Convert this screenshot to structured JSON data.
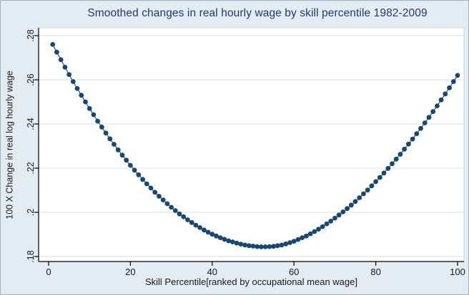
{
  "figure": {
    "background_color": "#e3ecf3",
    "plot_background": "#ffffff",
    "plot_border_color": "#c9d6e2",
    "gridline_color": "#dce8f1",
    "axis_color": "#000000",
    "tick_label_color": "#1a1a1a",
    "title_color": "#1e3a6e",
    "marker_color": "#1a476f",
    "line_color": "#1a476f"
  },
  "chart_data": {
    "type": "scatter",
    "title": "Smoothed changes in real hourly wage by skill percentile 1982-2009",
    "xlabel": "Skill Percentile[ranked by occupational mean wage]",
    "ylabel": "100 X Change in real log hourly wage",
    "legend": "none",
    "grid": "horizontal",
    "xlim": [
      -2.5,
      101.5
    ],
    "ylim": [
      0.178,
      0.284
    ],
    "x_ticks": [
      0,
      20,
      40,
      60,
      80,
      100
    ],
    "x_tick_labels": [
      "0",
      "20",
      "40",
      "60",
      "80",
      "100"
    ],
    "y_ticks": [
      0.18,
      0.2,
      0.22,
      0.24,
      0.26,
      0.28
    ],
    "y_tick_labels": [
      ".18",
      ".2",
      ".22",
      ".24",
      ".26",
      ".28"
    ],
    "series_name": "Smoothed change in real log hourly wage",
    "x": [
      1,
      2,
      3,
      4,
      5,
      6,
      7,
      8,
      9,
      10,
      11,
      12,
      13,
      14,
      15,
      16,
      17,
      18,
      19,
      20,
      21,
      22,
      23,
      24,
      25,
      26,
      27,
      28,
      29,
      30,
      31,
      32,
      33,
      34,
      35,
      36,
      37,
      38,
      39,
      40,
      41,
      42,
      43,
      44,
      45,
      46,
      47,
      48,
      49,
      50,
      51,
      52,
      53,
      54,
      55,
      56,
      57,
      58,
      59,
      60,
      61,
      62,
      63,
      64,
      65,
      66,
      67,
      68,
      69,
      70,
      71,
      72,
      73,
      74,
      75,
      76,
      77,
      78,
      79,
      80,
      81,
      82,
      83,
      84,
      85,
      86,
      87,
      88,
      89,
      90,
      91,
      92,
      93,
      94,
      95,
      96,
      97,
      98,
      99,
      100
    ],
    "y": [
      0.276,
      0.2725,
      0.2691,
      0.2657,
      0.2624,
      0.2592,
      0.2561,
      0.253,
      0.25,
      0.247,
      0.2442,
      0.2413,
      0.2386,
      0.2359,
      0.2333,
      0.2308,
      0.2283,
      0.2259,
      0.2236,
      0.2213,
      0.2191,
      0.217,
      0.2149,
      0.2129,
      0.211,
      0.2091,
      0.2073,
      0.2056,
      0.2039,
      0.2023,
      0.2008,
      0.1993,
      0.198,
      0.1966,
      0.1954,
      0.1942,
      0.1931,
      0.192,
      0.191,
      0.1901,
      0.1893,
      0.1885,
      0.1878,
      0.1871,
      0.1866,
      0.1861,
      0.1856,
      0.1852,
      0.1849,
      0.1847,
      0.1845,
      0.1844,
      0.1844,
      0.1845,
      0.1846,
      0.1849,
      0.1852,
      0.1857,
      0.1863,
      0.1869,
      0.1877,
      0.1885,
      0.1893,
      0.1903,
      0.1913,
      0.1924,
      0.1935,
      0.1948,
      0.196,
      0.1974,
      0.1988,
      0.2002,
      0.2017,
      0.2033,
      0.2049,
      0.2066,
      0.2084,
      0.2101,
      0.212,
      0.2139,
      0.2158,
      0.2178,
      0.2199,
      0.222,
      0.2241,
      0.2263,
      0.2286,
      0.2309,
      0.2332,
      0.2356,
      0.238,
      0.2405,
      0.243,
      0.2456,
      0.2482,
      0.2509,
      0.2536,
      0.2564,
      0.2592,
      0.262
    ]
  }
}
